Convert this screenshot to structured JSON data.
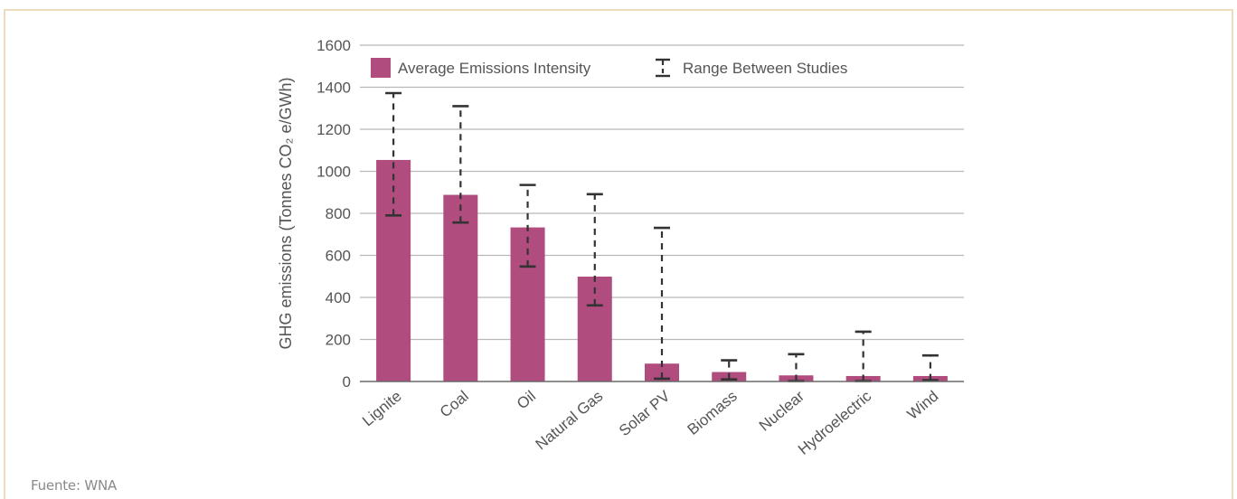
{
  "source": "Fuente: WNA",
  "colors": {
    "bar": "#b04c7e",
    "grid": "#b8b8b8",
    "axis": "#6a6a6a",
    "error": "#333333",
    "frame": "#ecdcbc"
  },
  "chart_data": {
    "type": "bar",
    "ylabel": "GHG emissions (Tonnes CO₂ e/GWh)",
    "ylim": [
      0,
      1600
    ],
    "yticks": [
      0,
      200,
      400,
      600,
      800,
      1000,
      1200,
      1400,
      1600
    ],
    "grid": true,
    "legend_position": "top",
    "legend": {
      "bar": "Average Emissions Intensity",
      "range": "Range Between Studies"
    },
    "categories": [
      "Lignite",
      "Coal",
      "Oil",
      "Natural Gas",
      "Solar PV",
      "Biomass",
      "Nuclear",
      "Hydroelectric",
      "Wind"
    ],
    "series": [
      {
        "name": "Average Emissions Intensity",
        "values": [
          1054,
          888,
          733,
          499,
          85,
          45,
          29,
          26,
          26
        ]
      },
      {
        "name": "Range Between Studies",
        "ranges": [
          [
            790,
            1372
          ],
          [
            756,
            1310
          ],
          [
            547,
            935
          ],
          [
            362,
            891
          ],
          [
            13,
            731
          ],
          [
            10,
            101
          ],
          [
            2,
            130
          ],
          [
            2,
            237
          ],
          [
            6,
            124
          ]
        ]
      }
    ]
  }
}
